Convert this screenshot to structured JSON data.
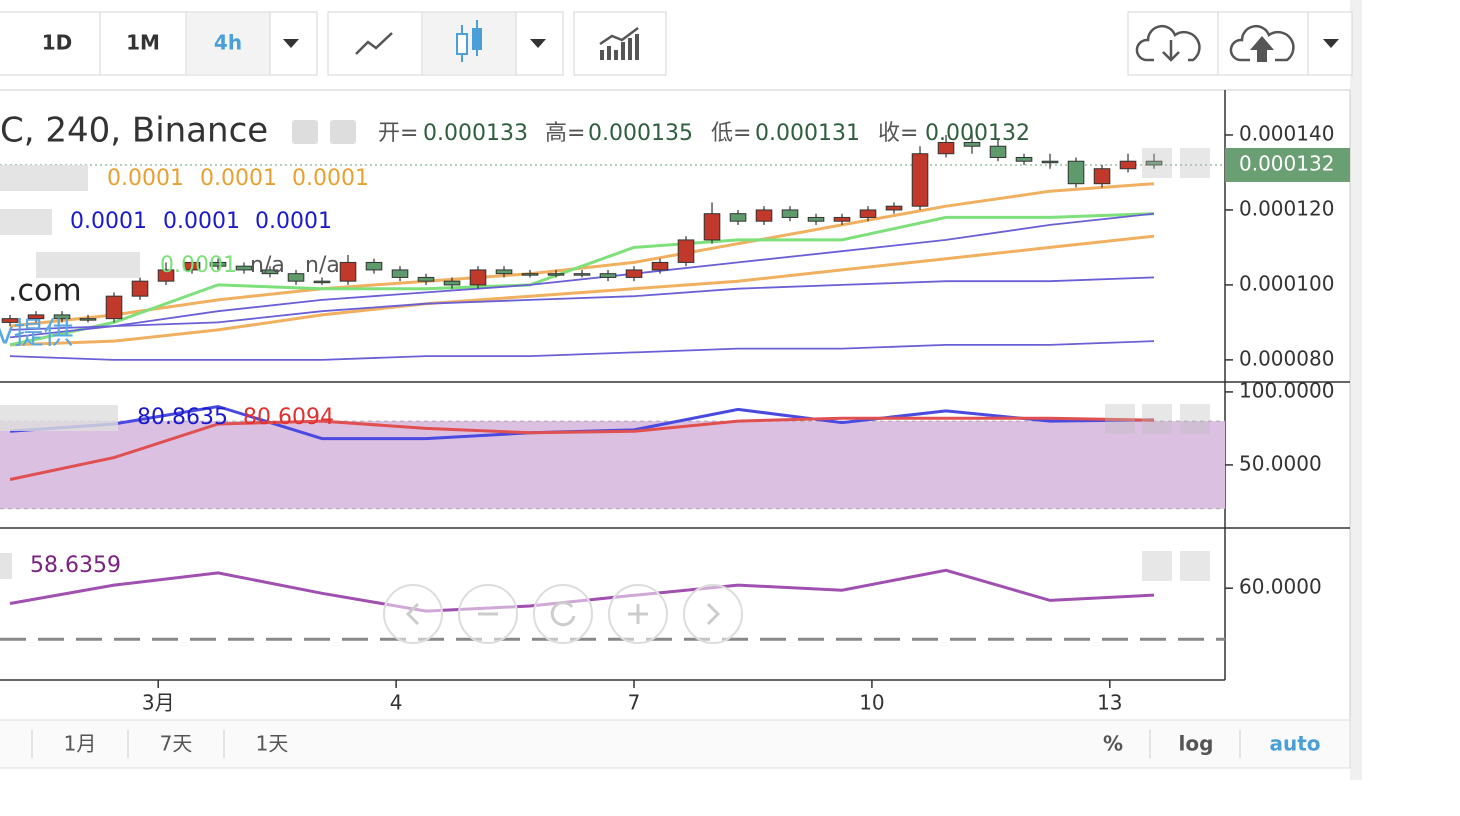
{
  "toolbar": {
    "intervals": [
      "1D",
      "1M",
      "4h"
    ]
  },
  "legend": {
    "symbol": "C, 240, Binance",
    "ohlc_labels": [
      "开=",
      "高=",
      "低=",
      "收="
    ]
  },
  "indicator_legends": [
    [
      "0.0001",
      "0.0001",
      "0.0001"
    ],
    [
      "0.0001",
      "0.0001",
      "0.0001"
    ],
    [
      "0.0001",
      "n/a",
      "n/a"
    ]
  ],
  "watermark": [
    ".com",
    "v提供"
  ],
  "footer": {
    "ranges": [
      "1月",
      "7天",
      "1天"
    ],
    "options": [
      "%",
      "log",
      "auto"
    ]
  },
  "chart_data": [
    {
      "type": "candlestick",
      "xlim": [
        -0.385,
        46.73
      ],
      "ylim": [
        7.41e-05,
        0.000152
      ],
      "yticks": [
        {
          "value": 0.00014,
          "label": "0.000140"
        },
        {
          "value": 0.00012,
          "label": "0.000120"
        },
        {
          "value": 0.0001,
          "label": "0.000100"
        },
        {
          "value": 8e-05,
          "label": "0.000080"
        }
      ],
      "up_color": "#c0392b",
      "down_color": "#5e9a6c",
      "open": [
        9e-05,
        9.1e-05,
        9.2e-05,
        9.1e-05,
        9.1e-05,
        9.7e-05,
        0.000101,
        0.000104,
        0.000106,
        0.000105,
        0.000104,
        0.000103,
        0.000101,
        0.000101,
        0.000106,
        0.000104,
        0.000102,
        0.000101,
        0.0001,
        0.000104,
        0.000103,
        0.000103,
        0.000103,
        0.000103,
        0.000102,
        0.000104,
        0.000106,
        0.000112,
        0.000119,
        0.000117,
        0.00012,
        0.000118,
        0.000117,
        0.000118,
        0.00012,
        0.000121,
        0.000135,
        0.000138,
        0.000137,
        0.000134,
        0.000133,
        0.000133,
        0.000127,
        0.000131,
        0.000133
      ],
      "high": [
        9.2e-05,
        9.3e-05,
        9.3e-05,
        9.2e-05,
        9.8e-05,
        0.000102,
        0.000106,
        0.000107,
        0.000107,
        0.000106,
        0.000105,
        0.000104,
        0.000102,
        0.000108,
        0.000107,
        0.000105,
        0.000103,
        0.000102,
        0.000105,
        0.000105,
        0.000104,
        0.000104,
        0.000104,
        0.000104,
        0.000105,
        0.000107,
        0.000113,
        0.000122,
        0.00012,
        0.000121,
        0.000121,
        0.000119,
        0.000119,
        0.000121,
        0.000122,
        0.000137,
        0.00014,
        0.000141,
        0.000139,
        0.000135,
        0.000135,
        0.000134,
        0.000132,
        0.000135,
        0.000135
      ],
      "low": [
        8.9e-05,
        9e-05,
        9e-05,
        9e-05,
        9e-05,
        9.6e-05,
        0.0001,
        0.000103,
        0.000104,
        0.000103,
        0.000102,
        0.0001,
        0.0001,
        0.0001,
        0.000103,
        0.000101,
        0.0001,
        9.9e-05,
        9.9e-05,
        0.000102,
        0.000102,
        0.000102,
        0.000102,
        0.000101,
        0.000101,
        0.000103,
        0.000105,
        0.000111,
        0.000116,
        0.000116,
        0.000117,
        0.000116,
        0.000116,
        0.000117,
        0.000119,
        0.00012,
        0.000134,
        0.000135,
        0.000133,
        0.000132,
        0.000131,
        0.000126,
        0.000126,
        0.00013,
        0.000131
      ],
      "close": [
        9.1e-05,
        9.2e-05,
        9.1e-05,
        9.1e-05,
        9.7e-05,
        0.000101,
        0.000104,
        0.000106,
        0.000105,
        0.000104,
        0.000103,
        0.000101,
        0.000101,
        0.000106,
        0.000104,
        0.000102,
        0.000101,
        0.0001,
        0.000104,
        0.000103,
        0.000103,
        0.000103,
        0.000103,
        0.000102,
        0.000104,
        0.000106,
        0.000112,
        0.000119,
        0.000117,
        0.00012,
        0.000118,
        0.000117,
        0.000118,
        0.00012,
        0.000121,
        0.000135,
        0.000138,
        0.000137,
        0.000134,
        0.000133,
        0.000133,
        0.000127,
        0.000131,
        0.000133,
        0.000132
      ],
      "overlay_x": [
        0,
        4,
        8,
        12,
        16,
        20,
        24,
        28,
        32,
        36,
        40,
        44
      ],
      "overlays": [
        {
          "color": "#f0b060",
          "values": [
            8.9e-05,
            9.2e-05,
            9.6e-05,
            9.9e-05,
            0.000101,
            0.000103,
            0.000106,
            0.000111,
            0.000116,
            0.000121,
            0.000125,
            0.000127
          ]
        },
        {
          "color": "#f0b060",
          "values": [
            8.4e-05,
            8.5e-05,
            8.8e-05,
            9.2e-05,
            9.5e-05,
            9.7e-05,
            9.9e-05,
            0.000101,
            0.000104,
            0.000107,
            0.00011,
            0.000113
          ]
        },
        {
          "color": "#7ee07a",
          "values": [
            8.4e-05,
            9e-05,
            0.0001,
            9.9e-05,
            9.9e-05,
            0.0001,
            0.00011,
            0.000112,
            0.000112,
            0.000118,
            0.000118,
            0.000119
          ]
        },
        {
          "color": "#6a5fd6",
          "values": [
            8.6e-05,
            8.9e-05,
            9.3e-05,
            9.6e-05,
            9.8e-05,
            0.0001,
            0.000103,
            0.000106,
            0.000109,
            0.000112,
            0.000116,
            0.000119
          ]
        },
        {
          "color": "#6a5fd6",
          "values": [
            8.8e-05,
            8.9e-05,
            9e-05,
            9.3e-05,
            9.5e-05,
            9.6e-05,
            9.7e-05,
            9.9e-05,
            0.0001,
            0.000101,
            0.000101,
            0.000102
          ]
        },
        {
          "color": "#6a5fd6",
          "values": [
            8.1e-05,
            8e-05,
            8e-05,
            8e-05,
            8.1e-05,
            8.1e-05,
            8.2e-05,
            8.3e-05,
            8.3e-05,
            8.4e-05,
            8.4e-05,
            8.5e-05
          ]
        }
      ]
    },
    {
      "type": "line",
      "xlim": [
        -0.385,
        46.73
      ],
      "ylim": [
        6.8,
        106.8
      ],
      "yticks": [
        {
          "value": 100,
          "label": "100.0000"
        },
        {
          "value": 50,
          "label": "50.0000"
        }
      ],
      "band": [
        20,
        80
      ],
      "band_color": "#dcc0e2",
      "x": [
        0,
        4,
        8,
        12,
        16,
        20,
        24,
        28,
        32,
        36,
        40,
        44
      ],
      "series": [
        {
          "color": "#4a4ae0",
          "values": [
            73,
            78,
            90,
            68,
            68,
            72,
            74,
            88,
            79,
            87,
            80,
            80.8635
          ]
        },
        {
          "color": "#e05050",
          "values": [
            40,
            55,
            78,
            80,
            75,
            72,
            73,
            80,
            82,
            82,
            82,
            80.6094
          ]
        }
      ]
    },
    {
      "type": "line",
      "xlim": [
        -0.385,
        46.73
      ],
      "ylim": [
        42,
        71.8
      ],
      "yticks": [
        {
          "value": 60,
          "label": "60.0000"
        }
      ],
      "reference": 50,
      "xticks": [
        {
          "value": 5.7,
          "label": "3月"
        },
        {
          "value": 14.85,
          "label": "4"
        },
        {
          "value": 24,
          "label": "7"
        },
        {
          "value": 33.15,
          "label": "10"
        },
        {
          "value": 42.3,
          "label": "13"
        }
      ],
      "x": [
        0,
        4,
        8,
        12,
        16,
        20,
        24,
        28,
        32,
        36,
        40,
        44
      ],
      "series": [
        {
          "color": "#a050b0",
          "values": [
            57,
            60.6,
            63,
            59,
            55.5,
            56.5,
            58.6,
            60.6,
            59.6,
            63.5,
            57.6,
            58.6359
          ]
        }
      ]
    }
  ]
}
